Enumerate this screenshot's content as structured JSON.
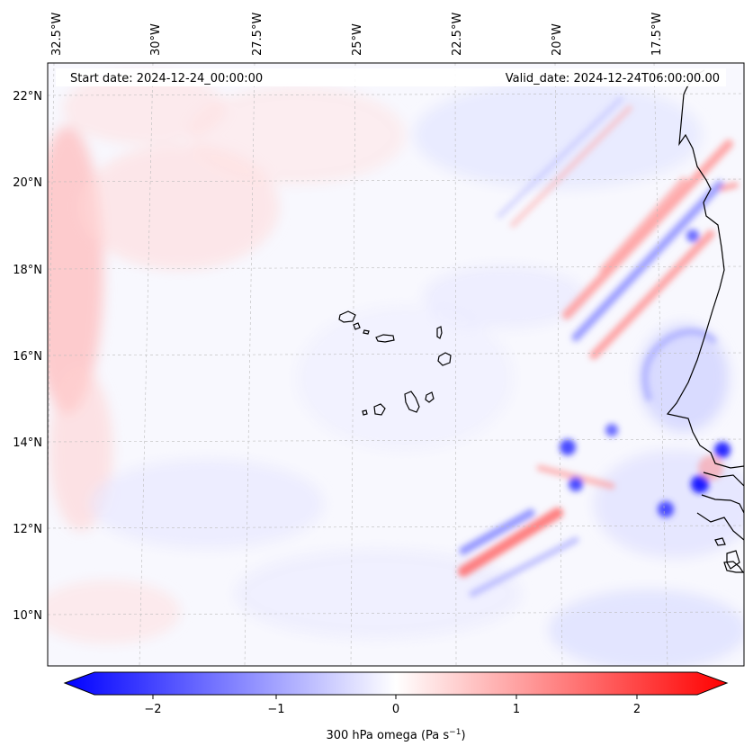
{
  "map": {
    "header": {
      "start_date": "Start date: 2024-12-24_00:00:00",
      "valid_date": "Valid_date: 2024-12-24T06:00:00.00"
    },
    "longitude_labels": [
      "32.5°W",
      "30°W",
      "27.5°W",
      "25°W",
      "22.5°W",
      "20°W",
      "17.5°W"
    ],
    "latitude_labels": [
      "22°N",
      "20°N",
      "18°N",
      "16°N",
      "14°N",
      "12°N",
      "10°N"
    ],
    "gridlines": true,
    "field_colors": {
      "negative": "#0000ff",
      "neutral": "#ffffff",
      "positive": "#ff0000"
    }
  },
  "colorbar": {
    "label": "300 hPa omega (Pa s",
    "label_exponent": "−1",
    "label_close": ")",
    "ticks": [
      "−2",
      "−1",
      "0",
      "1",
      "2"
    ],
    "range": [
      -2.6,
      2.6
    ],
    "extend": "both"
  }
}
